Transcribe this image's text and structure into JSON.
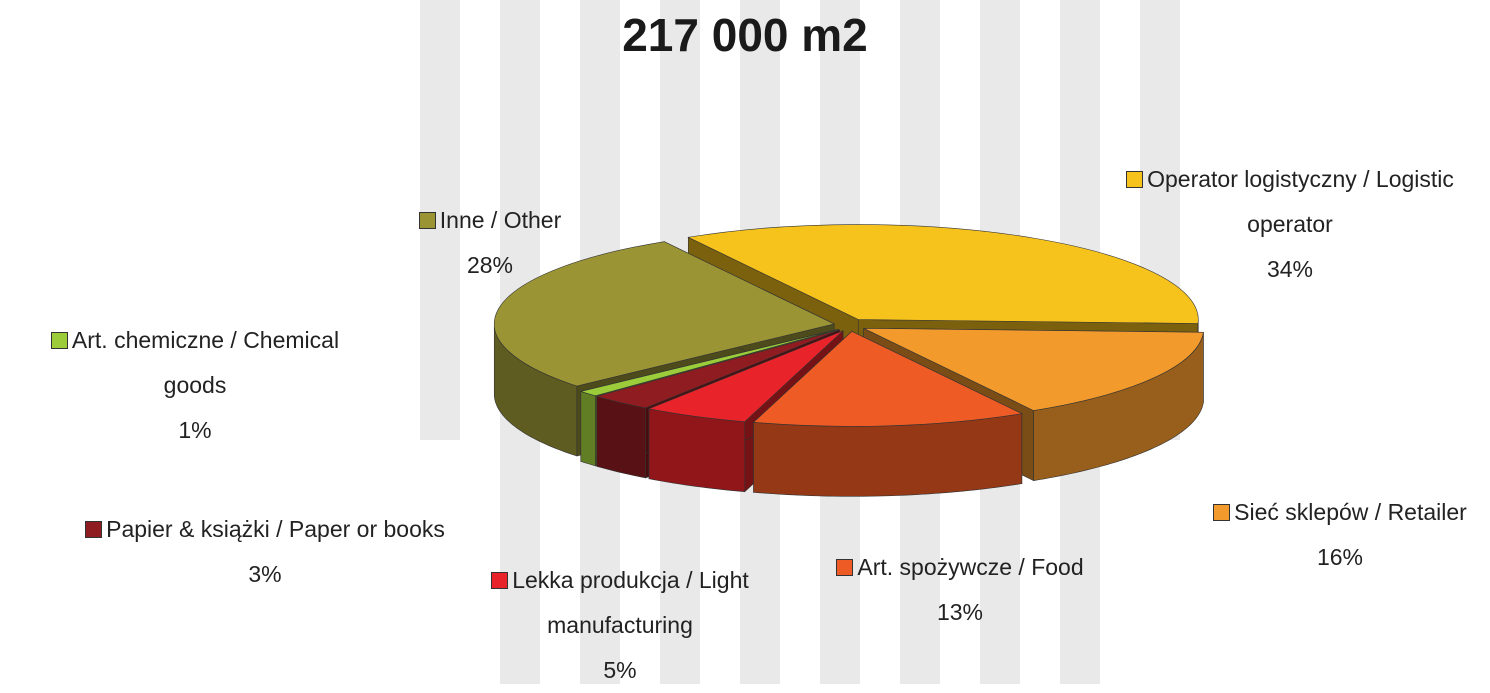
{
  "chart_data": {
    "type": "pie3d",
    "title": "217 000 m2",
    "categories": [
      "Operator logistyczny / Logistic operator",
      "Sieć sklepów / Retailer",
      "Art. spożywcze / Food",
      "Lekka produkcja / Light manufacturing",
      "Papier & książki / Paper or books",
      "Art. chemiczne / Chemical goods",
      "Inne / Other"
    ],
    "values": [
      34,
      16,
      13,
      5,
      3,
      1,
      28
    ],
    "value_labels": [
      "34%",
      "16%",
      "13%",
      "5%",
      "3%",
      "1%",
      "28%"
    ],
    "colors": [
      "#f6c21c",
      "#f39a2c",
      "#ee5b24",
      "#e8232a",
      "#8e1c20",
      "#9ccc3a",
      "#9a9435"
    ]
  }
}
